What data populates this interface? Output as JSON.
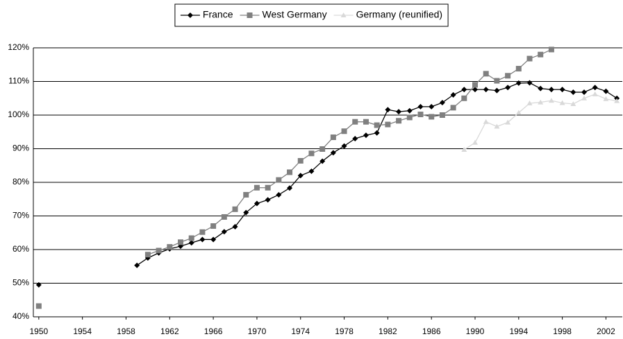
{
  "chart_data": {
    "type": "line",
    "x": [
      1950,
      1951,
      1952,
      1953,
      1954,
      1955,
      1956,
      1957,
      1958,
      1959,
      1960,
      1961,
      1962,
      1963,
      1964,
      1965,
      1966,
      1967,
      1968,
      1969,
      1970,
      1971,
      1972,
      1973,
      1974,
      1975,
      1976,
      1977,
      1978,
      1979,
      1980,
      1981,
      1982,
      1983,
      1984,
      1985,
      1986,
      1987,
      1988,
      1989,
      1990,
      1991,
      1992,
      1993,
      1994,
      1995,
      1996,
      1997,
      1998,
      1999,
      2000,
      2001,
      2002,
      2003
    ],
    "series": [
      {
        "name": "France",
        "color": "#000000",
        "marker": "diamond",
        "values": [
          49.5,
          null,
          null,
          null,
          null,
          null,
          null,
          null,
          null,
          55.3,
          57.5,
          59,
          60.2,
          61,
          62,
          63,
          63,
          65.3,
          66.8,
          71,
          73.7,
          74.8,
          76.3,
          78.3,
          82,
          83.3,
          86.3,
          88.8,
          90.8,
          93,
          94,
          94.7,
          101.6,
          101,
          101.3,
          102.5,
          102.5,
          103.7,
          106,
          107.6,
          107.6,
          107.6,
          107.3,
          108.2,
          109.5,
          109.6,
          107.9,
          107.6,
          107.6,
          106.8,
          106.8,
          108.2,
          107.1,
          105
        ]
      },
      {
        "name": "West Germany",
        "color": "#808080",
        "marker": "square",
        "values": [
          43.2,
          null,
          null,
          null,
          null,
          null,
          null,
          null,
          null,
          null,
          58.5,
          59.7,
          60.8,
          62.2,
          63.4,
          65.2,
          67,
          69.7,
          72,
          76.3,
          78.4,
          78.4,
          80.7,
          83,
          86.4,
          88.6,
          89.9,
          93.4,
          95.2,
          98,
          98,
          97,
          97.2,
          98.3,
          99.3,
          100.2,
          99.5,
          100,
          102.2,
          105,
          109,
          112.3,
          110.2,
          111.7,
          113.8,
          116.8,
          118,
          119.5,
          null,
          null,
          null,
          null,
          null,
          null
        ]
      },
      {
        "name": "Germany (reunified)",
        "color": "#d9d9d9",
        "marker": "triangle",
        "values": [
          null,
          null,
          null,
          null,
          null,
          null,
          null,
          null,
          null,
          null,
          null,
          null,
          null,
          null,
          null,
          null,
          null,
          null,
          null,
          null,
          null,
          null,
          null,
          null,
          null,
          null,
          null,
          null,
          null,
          null,
          null,
          null,
          null,
          null,
          null,
          null,
          null,
          null,
          null,
          89.7,
          91.8,
          98,
          96.6,
          97.8,
          100.7,
          103.5,
          103.8,
          104.3,
          103.6,
          103.3,
          105,
          106.2,
          104.8,
          104.2
        ]
      }
    ],
    "xlim": [
      1949.5,
      2003.5
    ],
    "xticks": [
      1950,
      1954,
      1958,
      1962,
      1966,
      1970,
      1974,
      1978,
      1982,
      1986,
      1990,
      1994,
      1998,
      2002
    ],
    "ylim": [
      40,
      120
    ],
    "yticks": [
      {
        "value": 40,
        "label": "40%"
      },
      {
        "value": 50,
        "label": "50%"
      },
      {
        "value": 60,
        "label": "60%"
      },
      {
        "value": 70,
        "label": "70%"
      },
      {
        "value": 80,
        "label": "80%"
      },
      {
        "value": 90,
        "label": "90%"
      },
      {
        "value": 100,
        "label": "100%"
      },
      {
        "value": 110,
        "label": "110%"
      },
      {
        "value": 120,
        "label": "120%"
      }
    ],
    "grid": true,
    "legend": "top"
  }
}
